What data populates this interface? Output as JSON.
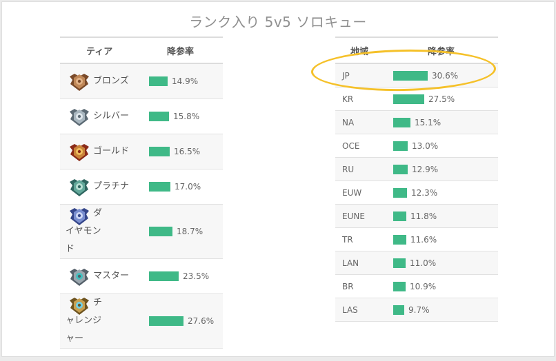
{
  "page_title": "ランク入り 5v5 ソロキュー",
  "tier_table": {
    "header_tier": "ティア",
    "header_rate": "降参率"
  },
  "region_table": {
    "header_region": "地域",
    "header_rate": "降参率"
  },
  "colors": {
    "bar": "#3fb987",
    "highlight": "#f5c12a"
  },
  "chart_data": [
    {
      "type": "table",
      "columns": [
        "ティア",
        "降参率"
      ],
      "rows": [
        {
          "tier": "ブロンズ",
          "rate": 14.9,
          "label": "14.9%",
          "icon": "bronze-emblem"
        },
        {
          "tier": "シルバー",
          "rate": 15.8,
          "label": "15.8%",
          "icon": "silver-emblem"
        },
        {
          "tier": "ゴールド",
          "rate": 16.5,
          "label": "16.5%",
          "icon": "gold-emblem"
        },
        {
          "tier": "プラチナ",
          "rate": 17.0,
          "label": "17.0%",
          "icon": "platinum-emblem"
        },
        {
          "tier": "ダイヤモンド",
          "rate": 18.7,
          "label": "18.7%",
          "icon": "diamond-emblem"
        },
        {
          "tier": "マスター",
          "rate": 23.5,
          "label": "23.5%",
          "icon": "master-emblem"
        },
        {
          "tier": "チャレンジャー",
          "rate": 27.6,
          "label": "27.6%",
          "icon": "challenger-emblem"
        }
      ]
    },
    {
      "type": "table",
      "columns": [
        "地域",
        "降参率"
      ],
      "rows": [
        {
          "region": "JP",
          "rate": 30.6,
          "label": "30.6%"
        },
        {
          "region": "KR",
          "rate": 27.5,
          "label": "27.5%"
        },
        {
          "region": "NA",
          "rate": 15.1,
          "label": "15.1%"
        },
        {
          "region": "OCE",
          "rate": 13.0,
          "label": "13.0%"
        },
        {
          "region": "RU",
          "rate": 12.9,
          "label": "12.9%"
        },
        {
          "region": "EUW",
          "rate": 12.3,
          "label": "12.3%"
        },
        {
          "region": "EUNE",
          "rate": 11.8,
          "label": "11.8%"
        },
        {
          "region": "TR",
          "rate": 11.6,
          "label": "11.6%"
        },
        {
          "region": "LAN",
          "rate": 11.0,
          "label": "11.0%"
        },
        {
          "region": "BR",
          "rate": 10.9,
          "label": "10.9%"
        },
        {
          "region": "LAS",
          "rate": 9.7,
          "label": "9.7%"
        }
      ]
    }
  ]
}
